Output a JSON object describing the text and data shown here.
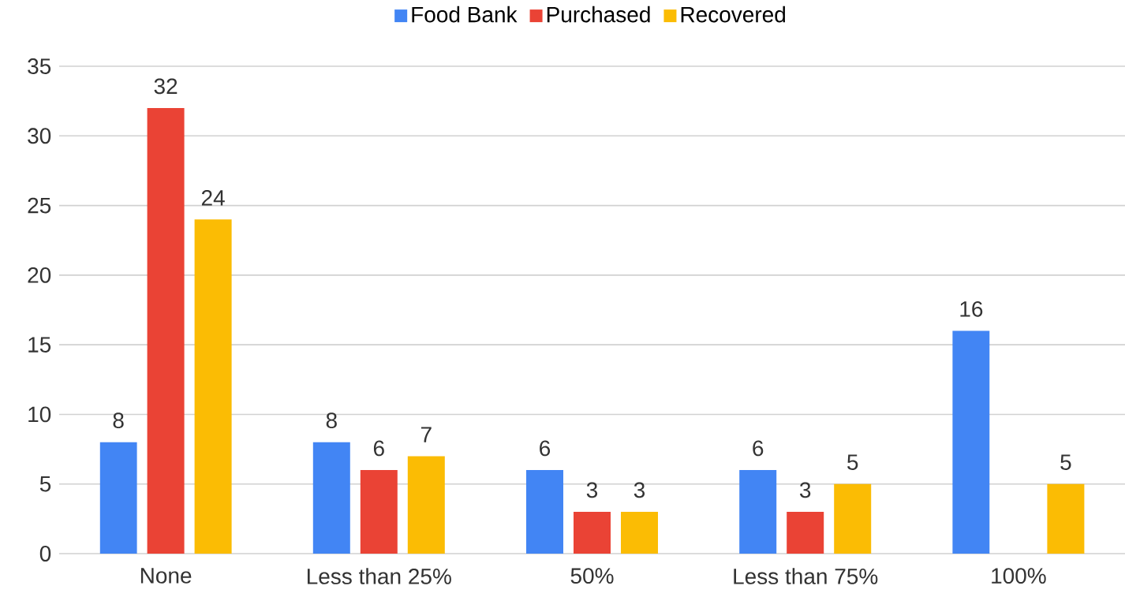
{
  "chart_data": {
    "type": "bar",
    "categories": [
      "None",
      "Less than 25%",
      "50%",
      "Less than 75%",
      "100%"
    ],
    "series": [
      {
        "name": "Food Bank",
        "color": "#4285f4",
        "values": [
          8,
          8,
          6,
          6,
          16
        ]
      },
      {
        "name": "Purchased",
        "color": "#ea4335",
        "values": [
          32,
          6,
          3,
          3,
          null
        ]
      },
      {
        "name": "Recovered",
        "color": "#fbbc04",
        "values": [
          24,
          7,
          3,
          5,
          5
        ]
      }
    ],
    "ylim": [
      0,
      35
    ],
    "yticks": [
      0,
      5,
      10,
      15,
      20,
      25,
      30,
      35
    ],
    "grid": "y",
    "legend": "top",
    "data_labels": true
  }
}
